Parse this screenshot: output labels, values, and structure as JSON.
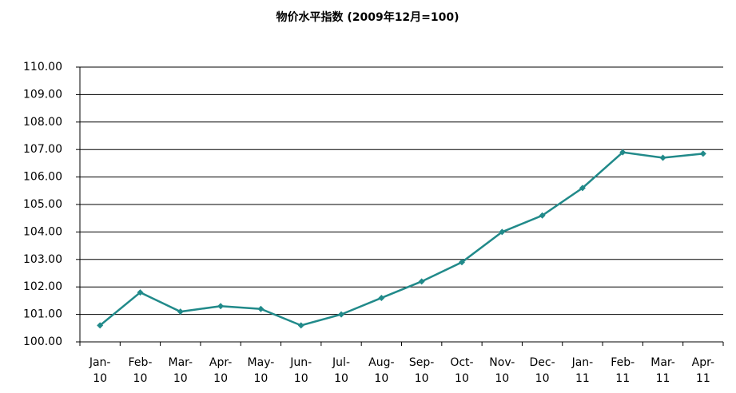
{
  "chart_data": {
    "type": "line",
    "title": "物价水平指数 (2009年12月=100)",
    "categories": [
      "Jan-10",
      "Feb-10",
      "Mar-10",
      "Apr-10",
      "May-10",
      "Jun-10",
      "Jul-10",
      "Aug-10",
      "Sep-10",
      "Oct-10",
      "Nov-10",
      "Dec-10",
      "Jan-11",
      "Feb-11",
      "Mar-11",
      "Apr-11"
    ],
    "series": [
      {
        "name": "物价水平指数",
        "color": "#218a8a",
        "values": [
          100.6,
          101.8,
          101.1,
          101.3,
          101.2,
          100.6,
          101.0,
          101.6,
          102.2,
          102.9,
          104.0,
          104.6,
          105.6,
          106.9,
          106.7,
          106.85
        ]
      }
    ],
    "ylim": [
      100,
      110
    ],
    "yticks": [
      {
        "value": 100,
        "label": "100.00"
      },
      {
        "value": 101,
        "label": "101.00"
      },
      {
        "value": 102,
        "label": "102.00"
      },
      {
        "value": 103,
        "label": "103.00"
      },
      {
        "value": 104,
        "label": "104.00"
      },
      {
        "value": 105,
        "label": "105.00"
      },
      {
        "value": 106,
        "label": "106.00"
      },
      {
        "value": 107,
        "label": "107.00"
      },
      {
        "value": 108,
        "label": "108.00"
      },
      {
        "value": 109,
        "label": "109.00"
      },
      {
        "value": 110,
        "label": "110.00"
      }
    ],
    "grid": true
  }
}
